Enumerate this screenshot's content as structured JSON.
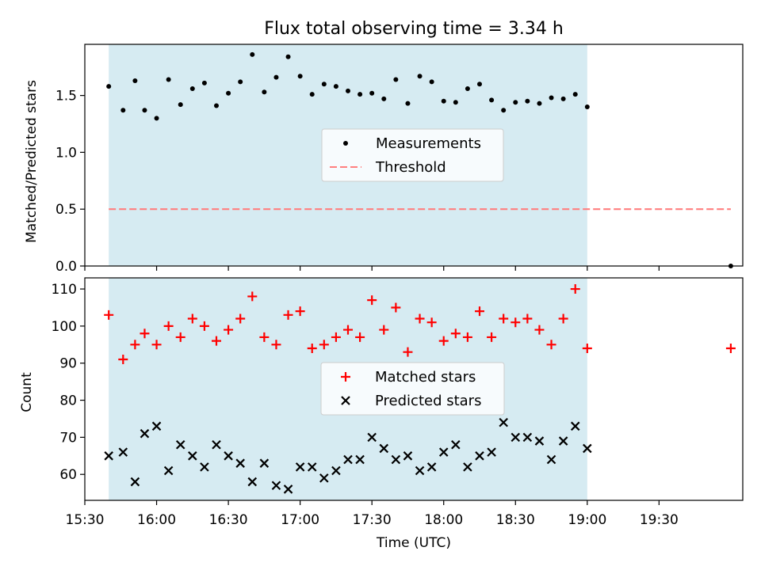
{
  "title": "Flux total observing time = 3.34 h",
  "colors": {
    "shade": "#add8e6",
    "matched": "#ff0000",
    "predicted": "#000000",
    "threshold": "#ff7f7f",
    "measurement": "#000000"
  },
  "chart_data": [
    {
      "type": "scatter",
      "ylabel": "Matched/Predicted stars",
      "ylim": [
        0,
        1.95
      ],
      "yticks": [
        0.0,
        0.5,
        1.0,
        1.5
      ],
      "ytick_labels": [
        "0.0",
        "0.5",
        "1.0",
        "1.5"
      ],
      "shaded_span": [
        "15:40",
        "19:00"
      ],
      "threshold": 0.5,
      "threshold_range": [
        "15:40",
        "20:00"
      ],
      "legend": [
        "Measurements",
        "Threshold"
      ],
      "legend_position": "center",
      "series": [
        {
          "name": "Measurements",
          "x": [
            "15:40",
            "15:46",
            "15:51",
            "15:55",
            "16:00",
            "16:05",
            "16:10",
            "16:15",
            "16:20",
            "16:25",
            "16:30",
            "16:35",
            "16:40",
            "16:45",
            "16:50",
            "16:55",
            "17:00",
            "17:05",
            "17:10",
            "17:15",
            "17:20",
            "17:25",
            "17:30",
            "17:35",
            "17:40",
            "17:45",
            "17:50",
            "17:55",
            "18:00",
            "18:05",
            "18:10",
            "18:15",
            "18:20",
            "18:25",
            "18:30",
            "18:35",
            "18:40",
            "18:45",
            "18:50",
            "18:55",
            "19:00",
            "20:00"
          ],
          "y": [
            1.58,
            1.37,
            1.63,
            1.37,
            1.3,
            1.64,
            1.42,
            1.56,
            1.61,
            1.41,
            1.52,
            1.62,
            1.86,
            1.53,
            1.66,
            1.84,
            1.67,
            1.51,
            1.6,
            1.58,
            1.54,
            1.51,
            1.52,
            1.47,
            1.64,
            1.43,
            1.67,
            1.62,
            1.45,
            1.44,
            1.56,
            1.6,
            1.46,
            1.37,
            1.44,
            1.45,
            1.43,
            1.48,
            1.47,
            1.51,
            1.4,
            0.0
          ]
        }
      ]
    },
    {
      "type": "scatter",
      "ylabel": "Count",
      "xlabel": "Time (UTC)",
      "ylim": [
        53,
        113
      ],
      "yticks": [
        60,
        70,
        80,
        90,
        100,
        110
      ],
      "ytick_labels": [
        "60",
        "70",
        "80",
        "90",
        "100",
        "110"
      ],
      "xlim": [
        "15:30",
        "20:05"
      ],
      "xticks": [
        "15:30",
        "16:00",
        "16:30",
        "17:00",
        "17:30",
        "18:00",
        "18:30",
        "19:00",
        "19:30"
      ],
      "shaded_span": [
        "15:40",
        "19:00"
      ],
      "legend": [
        "Matched stars",
        "Predicted stars"
      ],
      "legend_position": "center",
      "series": [
        {
          "name": "Matched stars",
          "x": [
            "15:40",
            "15:46",
            "15:51",
            "15:55",
            "16:00",
            "16:05",
            "16:10",
            "16:15",
            "16:20",
            "16:25",
            "16:30",
            "16:35",
            "16:40",
            "16:45",
            "16:50",
            "16:55",
            "17:00",
            "17:05",
            "17:10",
            "17:15",
            "17:20",
            "17:25",
            "17:30",
            "17:35",
            "17:40",
            "17:45",
            "17:50",
            "17:55",
            "18:00",
            "18:05",
            "18:10",
            "18:15",
            "18:20",
            "18:25",
            "18:30",
            "18:35",
            "18:40",
            "18:45",
            "18:50",
            "18:55",
            "19:00",
            "20:00"
          ],
          "y": [
            103,
            91,
            95,
            98,
            95,
            100,
            97,
            102,
            100,
            96,
            99,
            102,
            108,
            97,
            95,
            103,
            104,
            94,
            95,
            97,
            99,
            97,
            107,
            99,
            105,
            93,
            102,
            101,
            96,
            98,
            97,
            104,
            97,
            102,
            101,
            102,
            99,
            95,
            102,
            110,
            94,
            94
          ]
        },
        {
          "name": "Predicted stars",
          "x": [
            "15:40",
            "15:46",
            "15:51",
            "15:55",
            "16:00",
            "16:05",
            "16:10",
            "16:15",
            "16:20",
            "16:25",
            "16:30",
            "16:35",
            "16:40",
            "16:45",
            "16:50",
            "16:55",
            "17:00",
            "17:05",
            "17:10",
            "17:15",
            "17:20",
            "17:25",
            "17:30",
            "17:35",
            "17:40",
            "17:45",
            "17:50",
            "17:55",
            "18:00",
            "18:05",
            "18:10",
            "18:15",
            "18:20",
            "18:25",
            "18:30",
            "18:35",
            "18:40",
            "18:45",
            "18:50",
            "18:55",
            "19:00"
          ],
          "y": [
            65,
            66,
            58,
            71,
            73,
            61,
            68,
            65,
            62,
            68,
            65,
            63,
            58,
            63,
            57,
            56,
            62,
            62,
            59,
            61,
            64,
            64,
            70,
            67,
            64,
            65,
            61,
            62,
            66,
            68,
            62,
            65,
            66,
            74,
            70,
            70,
            69,
            64,
            69,
            73,
            67
          ]
        }
      ]
    }
  ]
}
